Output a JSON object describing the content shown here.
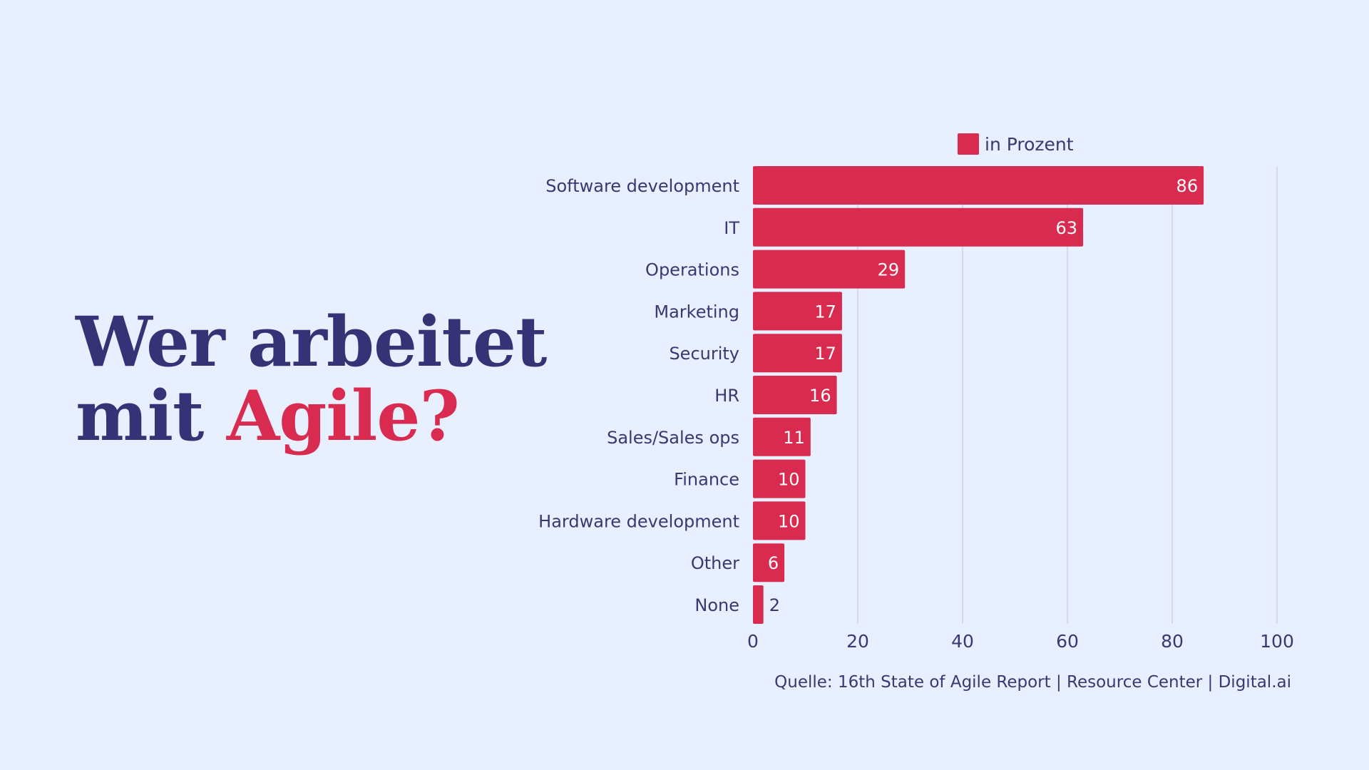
{
  "headline": {
    "line1": "Wer arbeitet",
    "line2_prefix": "mit ",
    "line2_accent": "Agile?"
  },
  "colors": {
    "background": "#e8efff",
    "primary": "#353375",
    "accent": "#d92a4f",
    "grid": "#cdd3e6"
  },
  "chart_data": {
    "type": "bar",
    "orientation": "horizontal",
    "categories": [
      "Software development",
      "IT",
      "Operations",
      "Marketing",
      "Security",
      "HR",
      "Sales/Sales ops",
      "Finance",
      "Hardware development",
      "Other",
      "None"
    ],
    "series": [
      {
        "name": "in Prozent",
        "color": "#d92a4f",
        "values": [
          86,
          63,
          29,
          17,
          17,
          16,
          11,
          10,
          10,
          6,
          2
        ]
      }
    ],
    "xlim": [
      0,
      100
    ],
    "xticks": [
      0,
      20,
      40,
      60,
      80,
      100
    ],
    "grid": "vertical",
    "legend": "top-center",
    "data_labels": true
  },
  "source": "Quelle: 16th State of Agile Report | Resource Center | Digital.ai"
}
